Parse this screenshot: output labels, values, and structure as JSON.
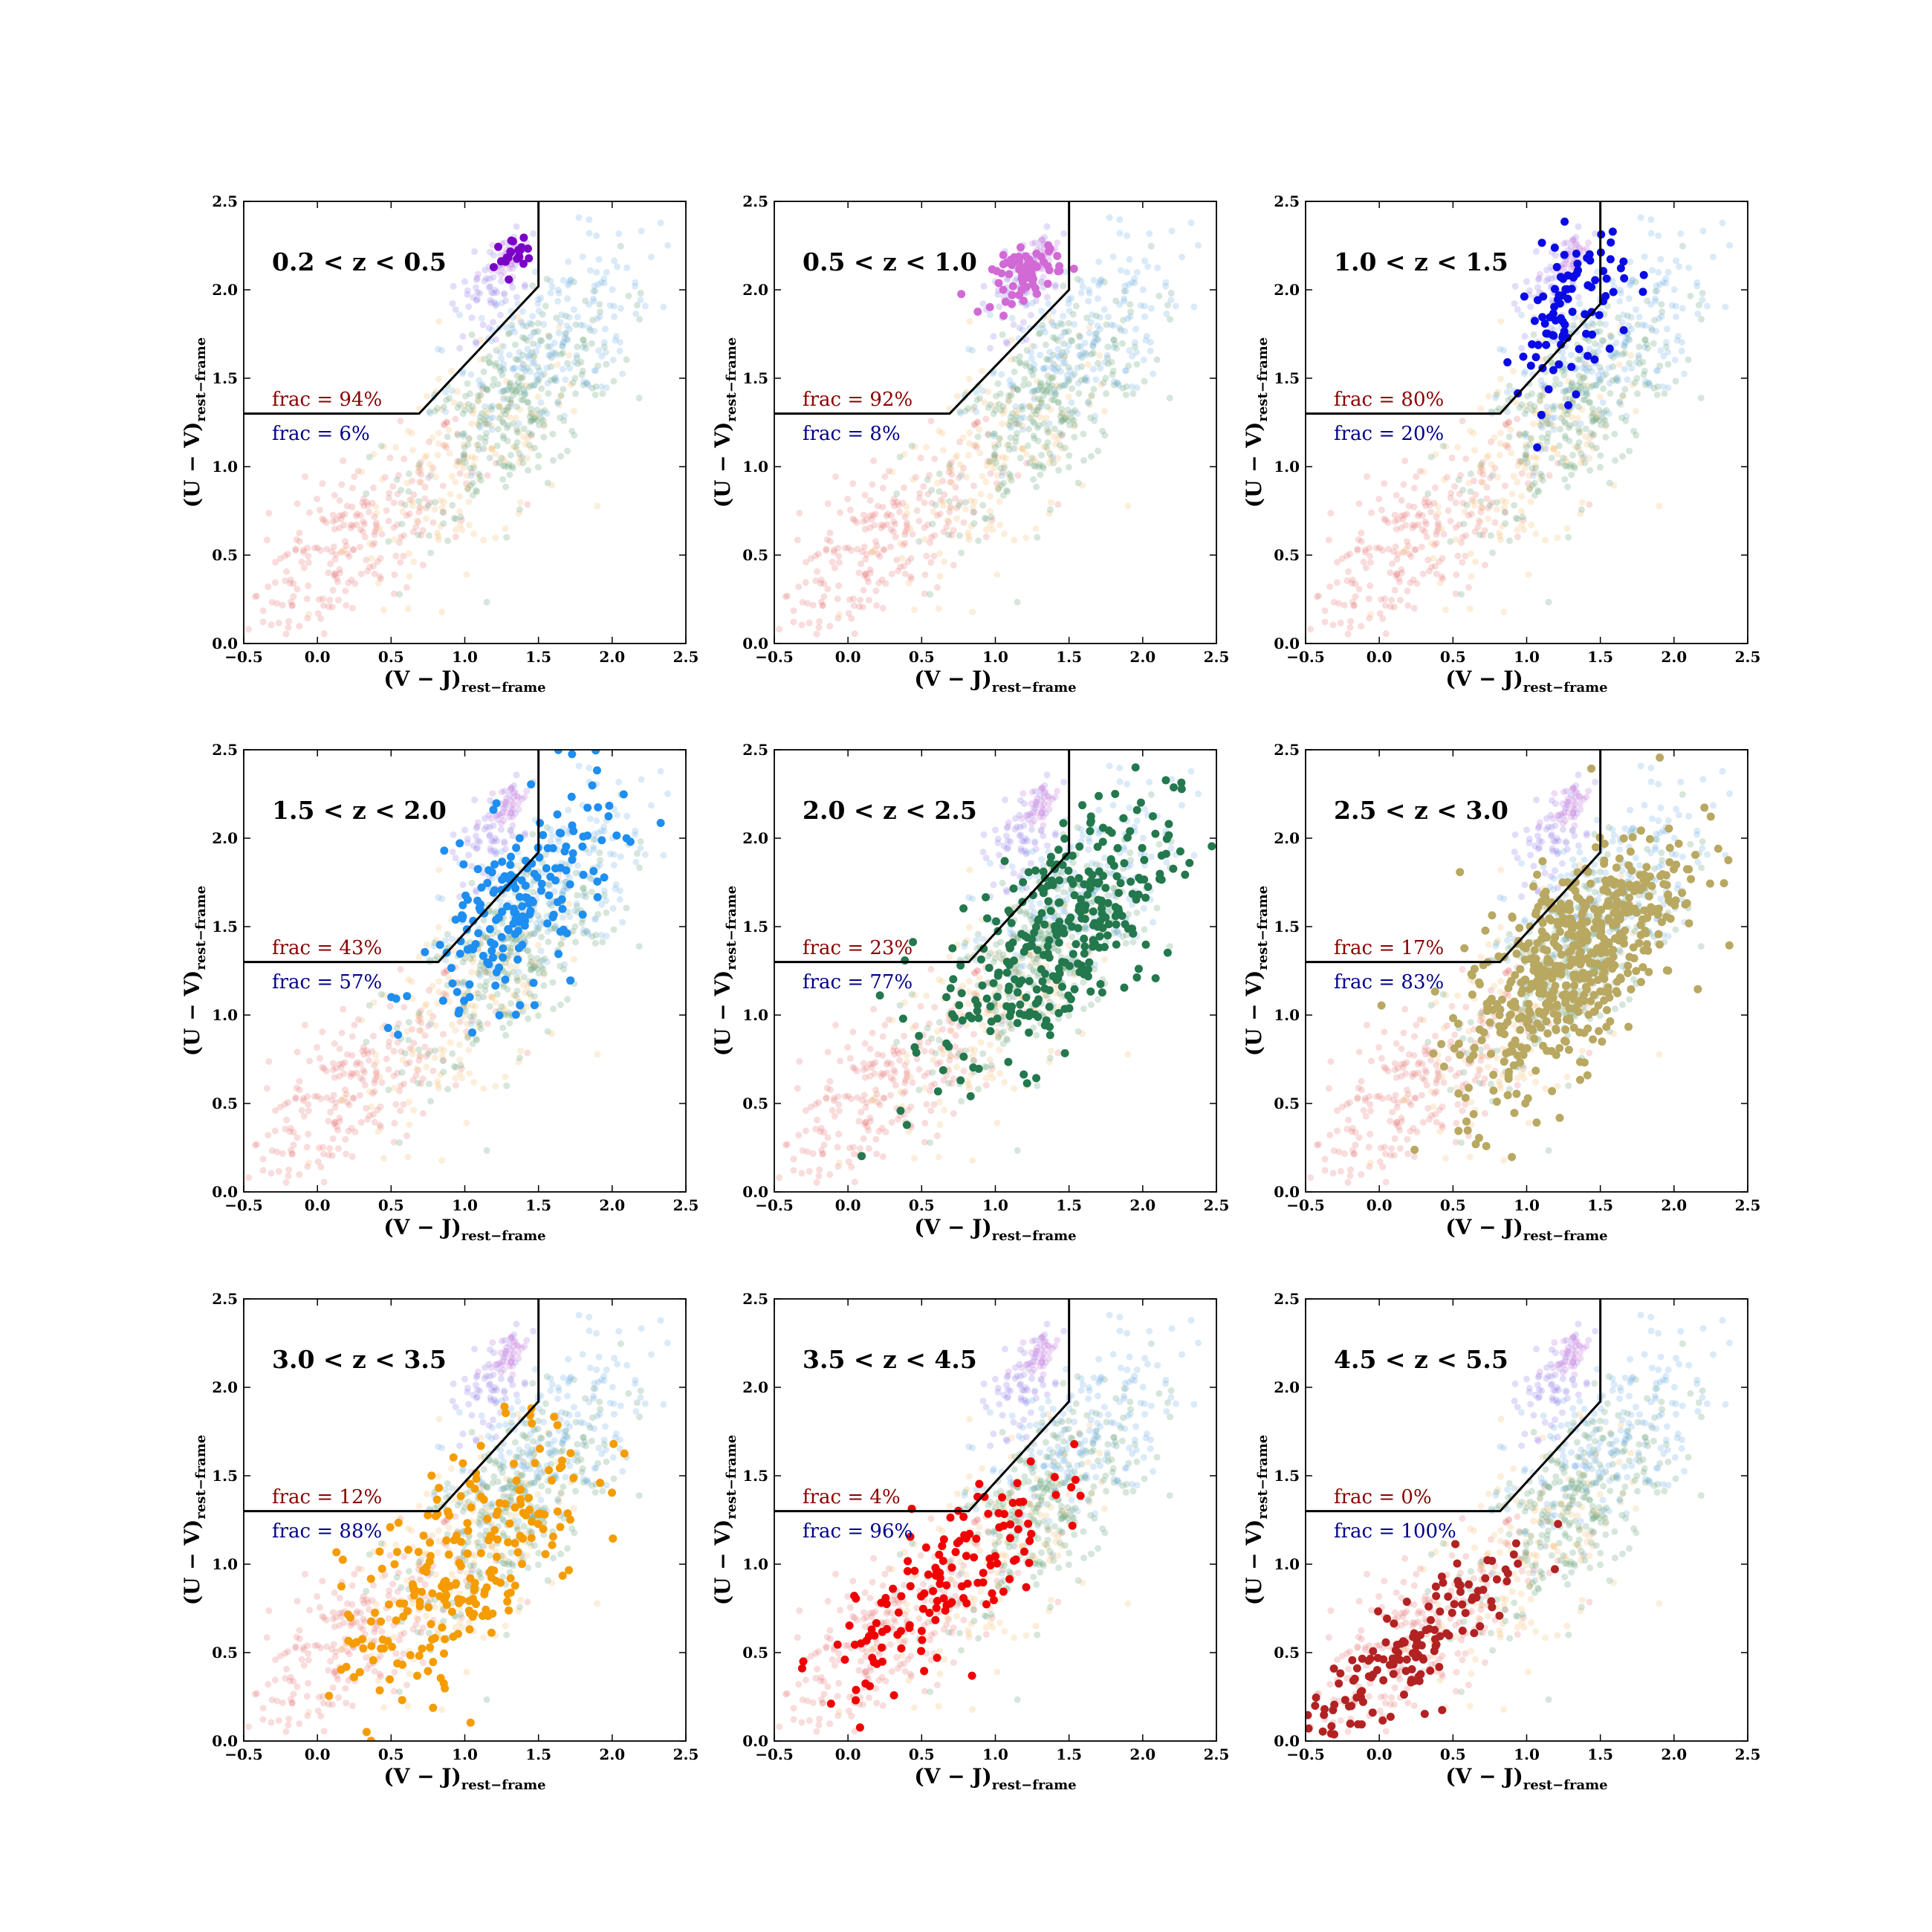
{
  "chart_data": [
    {
      "type": "scatter",
      "title": "0.2 < z < 0.5",
      "xlabel": "(V − J)",
      "xlabel_sub": "rest−frame",
      "ylabel": "(U − V)",
      "ylabel_sub": "rest−frame",
      "xlim": [
        -0.5,
        2.5
      ],
      "ylim": [
        0.0,
        2.5
      ],
      "xticks": [
        "−0.5",
        "0.0",
        "0.5",
        "1.0",
        "1.5",
        "2.0",
        "2.5"
      ],
      "yticks": [
        "0.0",
        "0.5",
        "1.0",
        "1.5",
        "2.0",
        "2.5"
      ],
      "boundary": [
        [
          -0.5,
          1.3
        ],
        [
          0.69,
          1.3
        ],
        [
          1.5,
          2.02
        ],
        [
          1.5,
          2.5
        ]
      ],
      "frac_quiescent": "frac = 94%",
      "frac_starforming": "frac = 6%",
      "highlight_color": "#7a00c8",
      "highlight_cluster": {
        "cx": 1.33,
        "cy": 2.2,
        "sx": 0.06,
        "sy": 0.05,
        "n": 22,
        "r": 0.35
      }
    },
    {
      "type": "scatter",
      "title": "0.5 < z < 1.0",
      "xlabel": "(V − J)",
      "xlabel_sub": "rest−frame",
      "ylabel": "(U − V)",
      "ylabel_sub": "rest−frame",
      "xlim": [
        -0.5,
        2.5
      ],
      "ylim": [
        0.0,
        2.5
      ],
      "xticks": [
        "−0.5",
        "0.0",
        "0.5",
        "1.0",
        "1.5",
        "2.0",
        "2.5"
      ],
      "yticks": [
        "0.0",
        "0.5",
        "1.0",
        "1.5",
        "2.0",
        "2.5"
      ],
      "boundary": [
        [
          -0.5,
          1.3
        ],
        [
          0.69,
          1.3
        ],
        [
          1.5,
          2.0
        ],
        [
          1.5,
          2.5
        ]
      ],
      "frac_quiescent": "frac = 92%",
      "frac_starforming": "frac = 8%",
      "highlight_color": "#d26ad6",
      "highlight_cluster": {
        "cx": 1.22,
        "cy": 2.1,
        "sx": 0.12,
        "sy": 0.07,
        "n": 70,
        "r": 0.3
      }
    },
    {
      "type": "scatter",
      "title": "1.0 < z < 1.5",
      "xlabel": "(V − J)",
      "xlabel_sub": "rest−frame",
      "ylabel": "(U − V)",
      "ylabel_sub": "rest−frame",
      "xlim": [
        -0.5,
        2.5
      ],
      "ylim": [
        0.0,
        2.5
      ],
      "xticks": [
        "−0.5",
        "0.0",
        "0.5",
        "1.0",
        "1.5",
        "2.0",
        "2.5"
      ],
      "yticks": [
        "0.0",
        "0.5",
        "1.0",
        "1.5",
        "2.0",
        "2.5"
      ],
      "boundary": [
        [
          -0.5,
          1.3
        ],
        [
          0.82,
          1.3
        ],
        [
          1.5,
          1.92
        ],
        [
          1.5,
          2.5
        ]
      ],
      "frac_quiescent": "frac = 80%",
      "frac_starforming": "frac = 20%",
      "highlight_color": "#0a0ae6",
      "highlight_cluster": {
        "cx": 1.3,
        "cy": 1.88,
        "sx": 0.18,
        "sy": 0.22,
        "n": 95,
        "r": 0.55
      }
    },
    {
      "type": "scatter",
      "title": "1.5 < z < 2.0",
      "xlabel": "(V − J)",
      "xlabel_sub": "rest−frame",
      "ylabel": "(U − V)",
      "ylabel_sub": "rest−frame",
      "xlim": [
        -0.5,
        2.5
      ],
      "ylim": [
        0.0,
        2.5
      ],
      "xticks": [
        "−0.5",
        "0.0",
        "0.5",
        "1.0",
        "1.5",
        "2.0",
        "2.5"
      ],
      "yticks": [
        "0.0",
        "0.5",
        "1.0",
        "1.5",
        "2.0",
        "2.5"
      ],
      "boundary": [
        [
          -0.5,
          1.3
        ],
        [
          0.82,
          1.3
        ],
        [
          1.5,
          1.92
        ],
        [
          1.5,
          2.5
        ]
      ],
      "frac_quiescent": "frac = 43%",
      "frac_starforming": "frac = 57%",
      "highlight_color": "#1e8ef0",
      "highlight_cluster": {
        "cx": 1.35,
        "cy": 1.6,
        "sx": 0.33,
        "sy": 0.25,
        "n": 190,
        "r": 0.6
      }
    },
    {
      "type": "scatter",
      "title": "2.0 < z < 2.5",
      "xlabel": "(V − J)",
      "xlabel_sub": "rest−frame",
      "ylabel": "(U − V)",
      "ylabel_sub": "rest−frame",
      "xlim": [
        -0.5,
        2.5
      ],
      "ylim": [
        0.0,
        2.5
      ],
      "xticks": [
        "−0.5",
        "0.0",
        "0.5",
        "1.0",
        "1.5",
        "2.0",
        "2.5"
      ],
      "yticks": [
        "0.0",
        "0.5",
        "1.0",
        "1.5",
        "2.0",
        "2.5"
      ],
      "boundary": [
        [
          -0.5,
          1.3
        ],
        [
          0.82,
          1.3
        ],
        [
          1.5,
          1.92
        ],
        [
          1.5,
          2.5
        ]
      ],
      "frac_quiescent": "frac = 23%",
      "frac_starforming": "frac = 77%",
      "highlight_color": "#23784d",
      "highlight_cluster": {
        "cx": 1.42,
        "cy": 1.45,
        "sx": 0.4,
        "sy": 0.3,
        "n": 330,
        "r": 0.6
      }
    },
    {
      "type": "scatter",
      "title": "2.5 < z < 3.0",
      "xlabel": "(V − J)",
      "xlabel_sub": "rest−frame",
      "ylabel": "(U − V)",
      "ylabel_sub": "rest−frame",
      "xlim": [
        -0.5,
        2.5
      ],
      "ylim": [
        0.0,
        2.5
      ],
      "xticks": [
        "−0.5",
        "0.0",
        "0.5",
        "1.0",
        "1.5",
        "2.0",
        "2.5"
      ],
      "yticks": [
        "0.0",
        "0.5",
        "1.0",
        "1.5",
        "2.0",
        "2.5"
      ],
      "boundary": [
        [
          -0.5,
          1.3
        ],
        [
          0.82,
          1.3
        ],
        [
          1.5,
          1.92
        ],
        [
          1.5,
          2.5
        ]
      ],
      "frac_quiescent": "frac = 17%",
      "frac_starforming": "frac = 83%",
      "highlight_color": "#b8a862",
      "highlight_cluster": {
        "cx": 1.3,
        "cy": 1.3,
        "sx": 0.38,
        "sy": 0.28,
        "n": 560,
        "r": 0.65
      }
    },
    {
      "type": "scatter",
      "title": "3.0 < z < 3.5",
      "xlabel": "(V − J)",
      "xlabel_sub": "rest−frame",
      "ylabel": "(U − V)",
      "ylabel_sub": "rest−frame",
      "xlim": [
        -0.5,
        2.5
      ],
      "ylim": [
        0.0,
        2.5
      ],
      "xticks": [
        "−0.5",
        "0.0",
        "0.5",
        "1.0",
        "1.5",
        "2.0",
        "2.5"
      ],
      "yticks": [
        "0.0",
        "0.5",
        "1.0",
        "1.5",
        "2.0",
        "2.5"
      ],
      "boundary": [
        [
          -0.5,
          1.3
        ],
        [
          0.82,
          1.3
        ],
        [
          1.5,
          1.92
        ],
        [
          1.5,
          2.5
        ]
      ],
      "frac_quiescent": "frac = 12%",
      "frac_starforming": "frac = 88%",
      "highlight_color": "#f59c00",
      "highlight_cluster": {
        "cx": 1.0,
        "cy": 1.0,
        "sx": 0.42,
        "sy": 0.3,
        "n": 230,
        "r": 0.65
      }
    },
    {
      "type": "scatter",
      "title": "3.5 < z < 4.5",
      "xlabel": "(V − J)",
      "xlabel_sub": "rest−frame",
      "ylabel": "(U − V)",
      "ylabel_sub": "rest−frame",
      "xlim": [
        -0.5,
        2.5
      ],
      "ylim": [
        0.0,
        2.5
      ],
      "xticks": [
        "−0.5",
        "0.0",
        "0.5",
        "1.0",
        "1.5",
        "2.0",
        "2.5"
      ],
      "yticks": [
        "0.0",
        "0.5",
        "1.0",
        "1.5",
        "2.0",
        "2.5"
      ],
      "boundary": [
        [
          -0.5,
          1.3
        ],
        [
          0.82,
          1.3
        ],
        [
          1.5,
          1.92
        ],
        [
          1.5,
          2.5
        ]
      ],
      "frac_quiescent": "frac = 4%",
      "frac_starforming": "frac = 96%",
      "highlight_color": "#f00000",
      "highlight_cluster": {
        "cx": 0.6,
        "cy": 0.88,
        "sx": 0.38,
        "sy": 0.22,
        "n": 140,
        "r": 0.65
      }
    },
    {
      "type": "scatter",
      "title": "4.5 < z < 5.5",
      "xlabel": "(V − J)",
      "xlabel_sub": "rest−frame",
      "ylabel": "(U − V)",
      "ylabel_sub": "rest−frame",
      "xlim": [
        -0.5,
        2.5
      ],
      "ylim": [
        0.0,
        2.5
      ],
      "xticks": [
        "−0.5",
        "0.0",
        "0.5",
        "1.0",
        "1.5",
        "2.0",
        "2.5"
      ],
      "yticks": [
        "0.0",
        "0.5",
        "1.0",
        "1.5",
        "2.0",
        "2.5"
      ],
      "boundary": [
        [
          -0.5,
          1.3
        ],
        [
          0.82,
          1.3
        ],
        [
          1.5,
          1.92
        ],
        [
          1.5,
          2.5
        ]
      ],
      "frac_quiescent": "frac = 0%",
      "frac_starforming": "frac = 100%",
      "highlight_color": "#b22222",
      "highlight_cluster": {
        "cx": 0.15,
        "cy": 0.45,
        "sx": 0.45,
        "sy": 0.15,
        "n": 170,
        "r": 0.7
      }
    }
  ]
}
